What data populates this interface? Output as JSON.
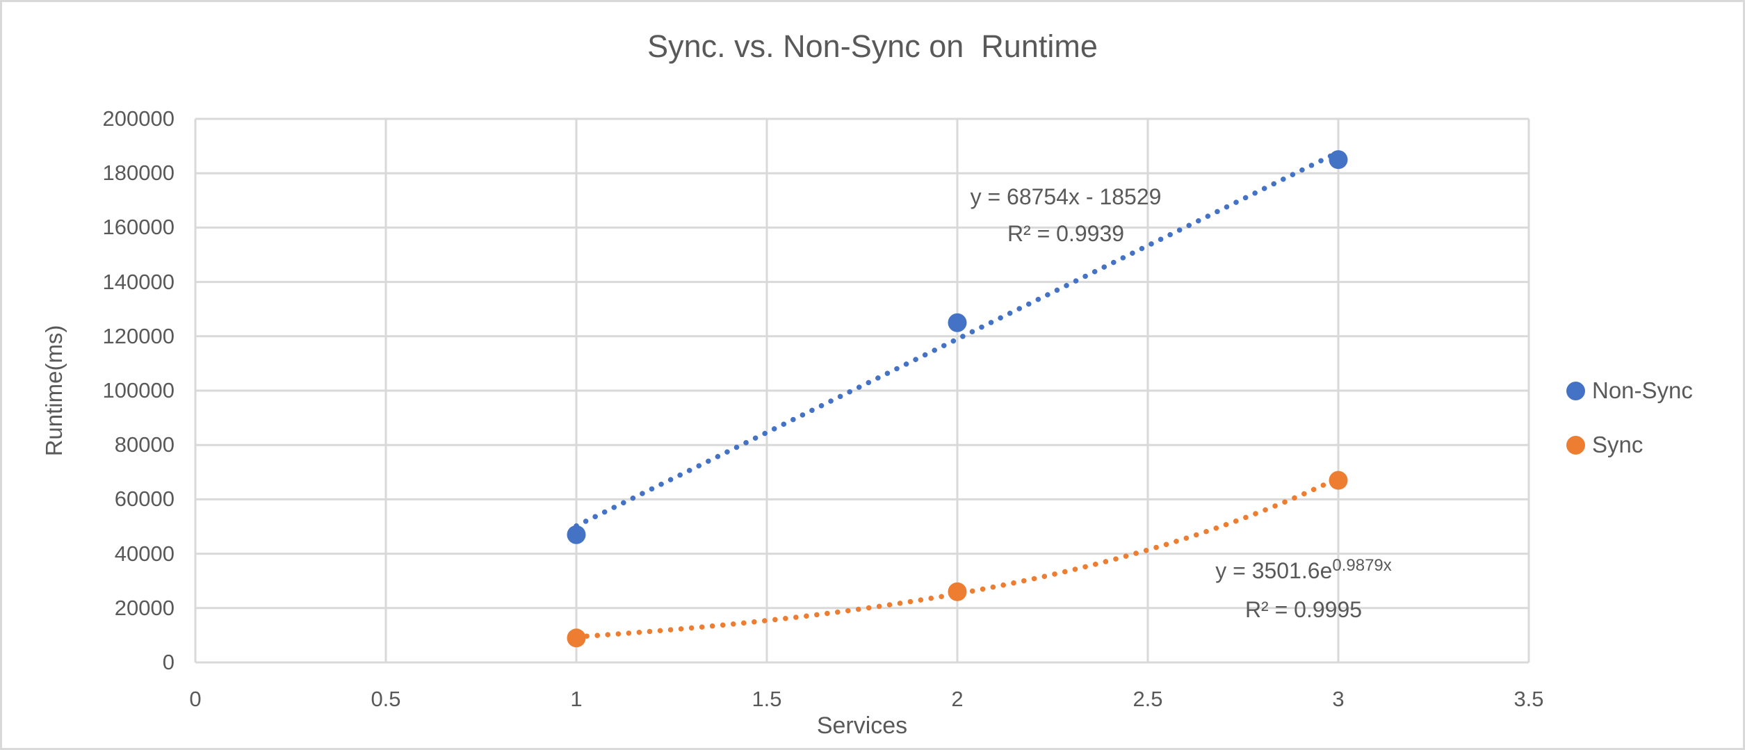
{
  "colors": {
    "non_sync_blue": "#4472C4",
    "sync_orange": "#ED7D31",
    "text_gray": "#595959",
    "gridline_gray": "#D9D9D9",
    "frame_border": "#D9D9D9"
  },
  "chart_data": {
    "type": "scatter",
    "title": "Sync. vs. Non-Sync on  Runtime",
    "xlabel": "Services",
    "ylabel": "Runtime(ms)",
    "xlim": [
      0,
      3.5
    ],
    "ylim": [
      0,
      200000
    ],
    "grid": true,
    "legend_position": "right",
    "x_ticks": [
      "0",
      "0.5",
      "1",
      "1.5",
      "2",
      "2.5",
      "3",
      "3.5"
    ],
    "y_ticks": [
      "0",
      "20000",
      "40000",
      "60000",
      "80000",
      "100000",
      "120000",
      "140000",
      "160000",
      "180000",
      "200000"
    ],
    "series": [
      {
        "name": "Non-Sync",
        "color": "#4472C4",
        "x": [
          1,
          2,
          3
        ],
        "y": [
          47000,
          125000,
          185000
        ],
        "trendline": {
          "type": "linear",
          "slope": 68754,
          "intercept": -18529,
          "domain": [
            1,
            3
          ],
          "equation": "y = 68754x - 18529",
          "r2_label": "R² = 0.9939",
          "r2": 0.9939
        }
      },
      {
        "name": "Sync",
        "color": "#ED7D31",
        "x": [
          1,
          2,
          3
        ],
        "y": [
          9000,
          26000,
          67000
        ],
        "trendline": {
          "type": "exponential",
          "a": 3501.6,
          "b": 0.9879,
          "domain": [
            1,
            3
          ],
          "equation_base": "y = 3501.6e",
          "equation_exp": "0.9879x",
          "r2_label": "R² = 0.9995",
          "r2": 0.9995
        }
      }
    ]
  }
}
